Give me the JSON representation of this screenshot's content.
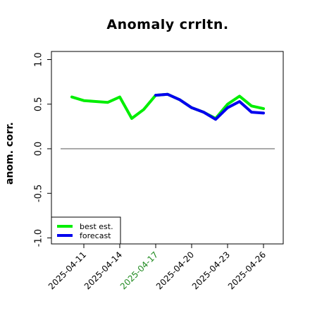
{
  "chart_data": {
    "type": "line",
    "title": "Anomaly crrltn.",
    "ylabel": "anom. corr.",
    "xlabel": "",
    "ylim": [
      -1.0,
      1.0
    ],
    "yticks": [
      "-1.0",
      "-0.5",
      "0.0",
      "0.5",
      "1.0"
    ],
    "ytick_values": [
      -1.0,
      -0.5,
      0.0,
      0.5,
      1.0
    ],
    "xtick_labels": [
      "2025-04-11",
      "2025-04-14",
      "2025-04-17",
      "2025-04-20",
      "2025-04-23",
      "2025-04-26"
    ],
    "highlight_tick": "2025-04-17",
    "highlight_color": "#228b22",
    "x": [
      "2025-04-10",
      "2025-04-11",
      "2025-04-12",
      "2025-04-13",
      "2025-04-14",
      "2025-04-15",
      "2025-04-16",
      "2025-04-17",
      "2025-04-18",
      "2025-04-19",
      "2025-04-20",
      "2025-04-21",
      "2025-04-22",
      "2025-04-23",
      "2025-04-24",
      "2025-04-25",
      "2025-04-26"
    ],
    "series": [
      {
        "name": "best est.",
        "color": "#00ee00",
        "values": [
          0.58,
          0.54,
          0.53,
          0.52,
          0.58,
          0.34,
          0.44,
          0.6,
          0.61,
          0.55,
          0.46,
          0.41,
          0.34,
          0.5,
          0.59,
          0.48,
          0.45
        ]
      },
      {
        "name": "forecast",
        "color": "#0000ee",
        "values": [
          null,
          null,
          null,
          null,
          null,
          null,
          null,
          0.6,
          0.61,
          0.55,
          0.46,
          0.41,
          0.33,
          0.46,
          0.53,
          0.41,
          0.4
        ]
      }
    ],
    "reference_line": 0.0,
    "legend_position": "bottom-left",
    "grid": false
  }
}
